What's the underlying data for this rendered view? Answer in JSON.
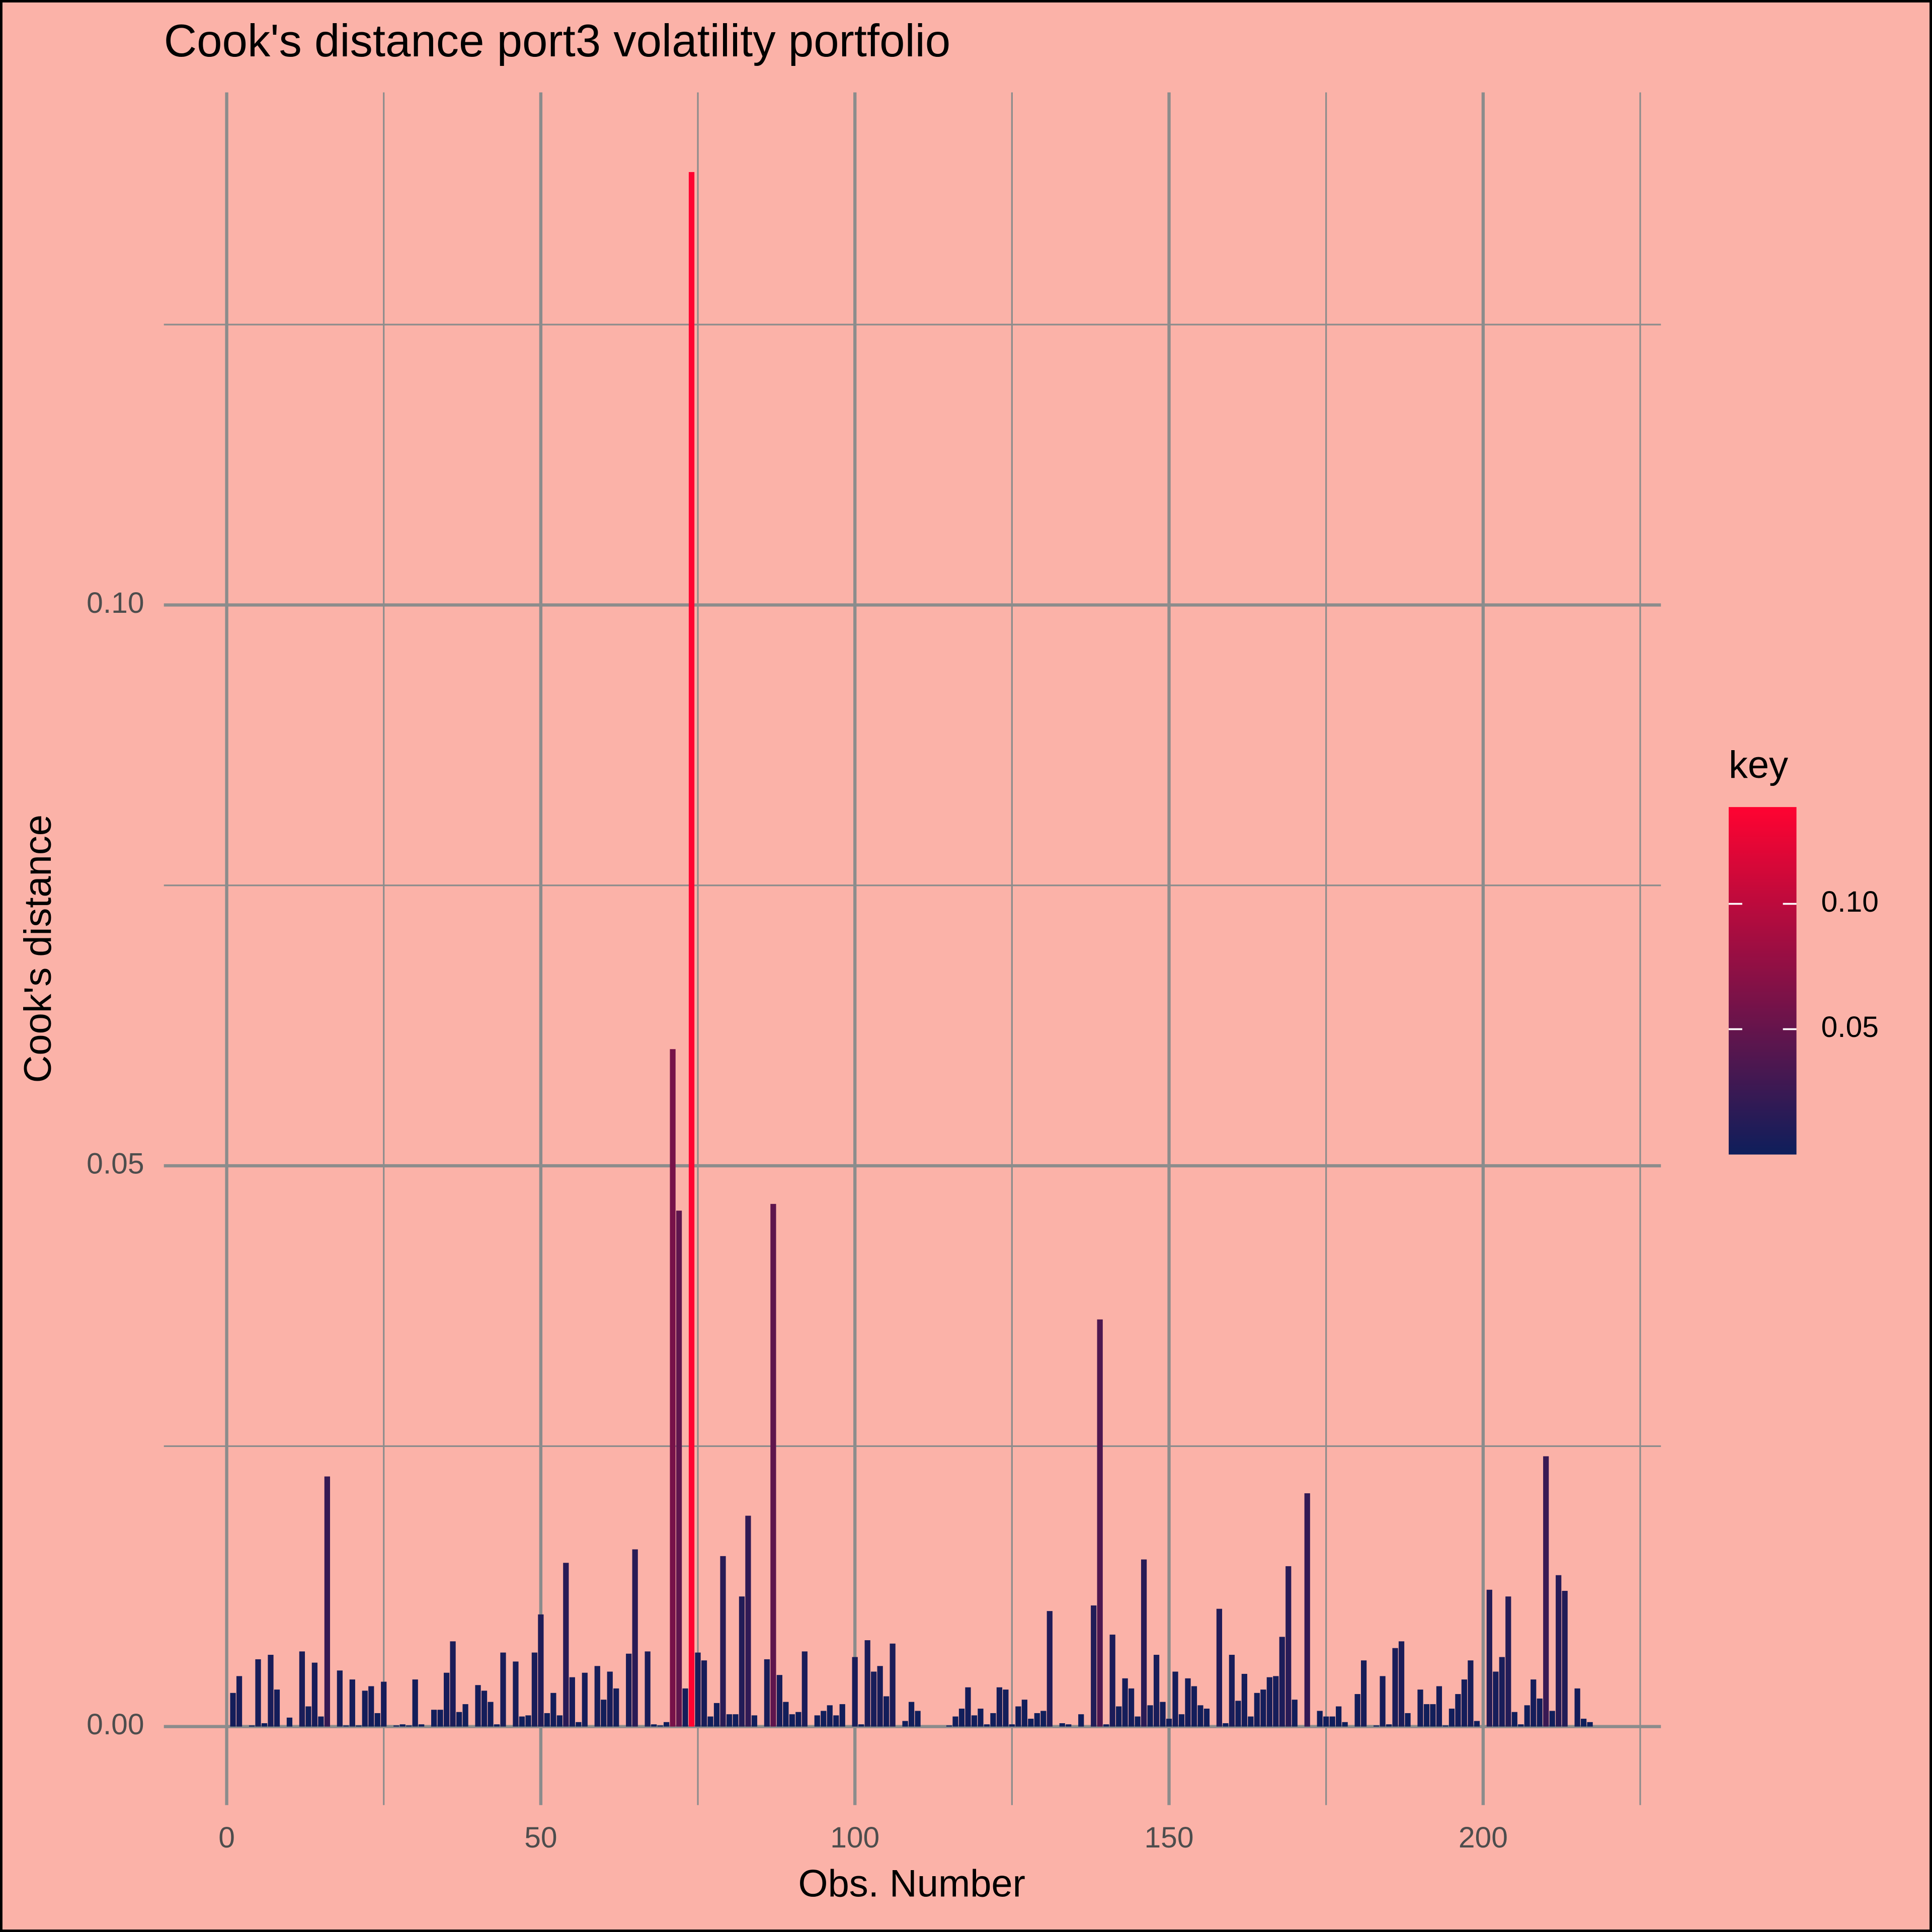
{
  "chart_data": {
    "type": "bar",
    "title": "Cook's distance port3 volatility portfolio",
    "x_label": "Obs. Number",
    "y_label": "Cook's distance",
    "x": [
      1,
      2,
      3,
      4,
      5,
      6,
      7,
      8,
      9,
      10,
      11,
      12,
      13,
      14,
      15,
      16,
      17,
      18,
      19,
      20,
      21,
      22,
      23,
      24,
      25,
      26,
      27,
      28,
      29,
      30,
      31,
      32,
      33,
      34,
      35,
      36,
      37,
      38,
      39,
      40,
      41,
      42,
      43,
      44,
      45,
      46,
      47,
      48,
      49,
      50,
      51,
      52,
      53,
      54,
      55,
      56,
      57,
      58,
      59,
      60,
      61,
      62,
      63,
      64,
      65,
      66,
      67,
      68,
      69,
      70,
      71,
      72,
      73,
      74,
      75,
      76,
      77,
      78,
      79,
      80,
      81,
      82,
      83,
      84,
      85,
      86,
      87,
      88,
      89,
      90,
      91,
      92,
      93,
      94,
      95,
      96,
      97,
      98,
      99,
      100,
      101,
      102,
      103,
      104,
      105,
      106,
      107,
      108,
      109,
      110,
      111,
      112,
      113,
      114,
      115,
      116,
      117,
      118,
      119,
      120,
      121,
      122,
      123,
      124,
      125,
      126,
      127,
      128,
      129,
      130,
      131,
      132,
      133,
      134,
      135,
      136,
      137,
      138,
      139,
      140,
      141,
      142,
      143,
      144,
      145,
      146,
      147,
      148,
      149,
      150,
      151,
      152,
      153,
      154,
      155,
      156,
      157,
      158,
      159,
      160,
      161,
      162,
      163,
      164,
      165,
      166,
      167,
      168,
      169,
      170,
      171,
      172,
      173,
      174,
      175,
      176,
      177,
      178,
      179,
      180,
      181,
      182,
      183,
      184,
      185,
      186,
      187,
      188,
      189,
      190,
      191,
      192,
      193,
      194,
      195,
      196,
      197,
      198,
      199,
      200,
      201,
      202,
      203,
      204,
      205,
      206,
      207,
      208,
      209,
      210,
      211,
      212,
      213,
      214,
      215,
      216,
      217
    ],
    "values": [
      0.003,
      0.0045,
      0,
      0.0001,
      0.006,
      0.0003,
      0.0064,
      0.0033,
      0,
      0.0008,
      0,
      0.0067,
      0.0018,
      0.0057,
      0.0009,
      0.0223,
      0,
      0.005,
      0.0001,
      0.0042,
      0.0001,
      0.0032,
      0.0036,
      0.0012,
      0.004,
      0,
      0.0001,
      0.0002,
      0.0001,
      0.0042,
      0.0002,
      0,
      0.0015,
      0.0015,
      0.0048,
      0.0076,
      0.0013,
      0.002,
      0,
      0.0037,
      0.0032,
      0.0022,
      0.0002,
      0.0066,
      0,
      0.0058,
      0.0009,
      0.001,
      0.0066,
      0.01,
      0.0012,
      0.003,
      0.001,
      0.0146,
      0.0044,
      0.0004,
      0.0048,
      0,
      0.0054,
      0.0024,
      0.0049,
      0.0034,
      0,
      0.0065,
      0.0158,
      0,
      0.0067,
      0.0002,
      0.0001,
      0.0004,
      0.0604,
      0.046,
      0.0034,
      0.1386,
      0.0066,
      0.0059,
      0.0009,
      0.0021,
      0.0152,
      0.0011,
      0.0011,
      0.0116,
      0.0188,
      0.001,
      0,
      0.006,
      0.0466,
      0.0046,
      0.0022,
      0.0011,
      0.0013,
      0.0067,
      0,
      0.001,
      0.0014,
      0.0019,
      0.001,
      0.002,
      0,
      0.0062,
      0.0002,
      0.0077,
      0.0049,
      0.0054,
      0.0027,
      0.0074,
      0,
      0.0005,
      0.0022,
      0.0014,
      0,
      0,
      0,
      0,
      0.0001,
      0.0009,
      0.0016,
      0.0035,
      0.001,
      0.0016,
      0.0002,
      0.0012,
      0.0035,
      0.0033,
      0.0002,
      0.0018,
      0.0024,
      0.0007,
      0.0012,
      0.0014,
      0.0103,
      0,
      0.0003,
      0.0002,
      0,
      0.0011,
      0,
      0.0108,
      0.0363,
      0.0002,
      0.0082,
      0.0018,
      0.0043,
      0.0034,
      0.0009,
      0.0149,
      0.0019,
      0.0064,
      0.0022,
      0.0007,
      0.0049,
      0.0011,
      0.0043,
      0.0036,
      0.0019,
      0.0016,
      0,
      0.0105,
      0.0003,
      0.0064,
      0.0023,
      0.0047,
      0.0009,
      0.003,
      0.0033,
      0.0044,
      0.0045,
      0.008,
      0.0143,
      0.0024,
      0,
      0.0208,
      0,
      0.0014,
      0.0009,
      0.0009,
      0.0018,
      0.0004,
      0,
      0.0029,
      0.0059,
      0,
      0.0001,
      0.0045,
      0.0002,
      0.007,
      0.0076,
      0.0012,
      0,
      0.0033,
      0.002,
      0.002,
      0.0036,
      0.0001,
      0.0016,
      0.0029,
      0.0042,
      0.0059,
      0.0005,
      0,
      0.0122,
      0.0049,
      0.0062,
      0.0116,
      0.0013,
      0.0002,
      0.0019,
      0.0042,
      0.0025,
      0.0241,
      0.0014,
      0.0135,
      0.0121,
      0,
      0.0034,
      0.0007,
      0.0004
    ],
    "color_scale": {
      "low": "#0e1e5b",
      "high": "#ff0331"
    },
    "xlim": [
      -10,
      228.3
    ],
    "ylim": [
      -0.007,
      0.1457
    ],
    "xticks": [
      0,
      50,
      100,
      150,
      200
    ],
    "x_minor_ticks": [
      25,
      75,
      125,
      175,
      225
    ],
    "yticks": [
      {
        "value": 0,
        "label": "0.00"
      },
      0.05,
      {
        "value": 0.1,
        "label": "0.10"
      }
    ],
    "y_minor_ticks": [
      0.025,
      0.075,
      0.125
    ],
    "grid": true,
    "legend": {
      "title": "key",
      "position": "right",
      "ticks": [
        0.05,
        {
          "value": 0.1,
          "label": "0.10"
        }
      ]
    }
  }
}
